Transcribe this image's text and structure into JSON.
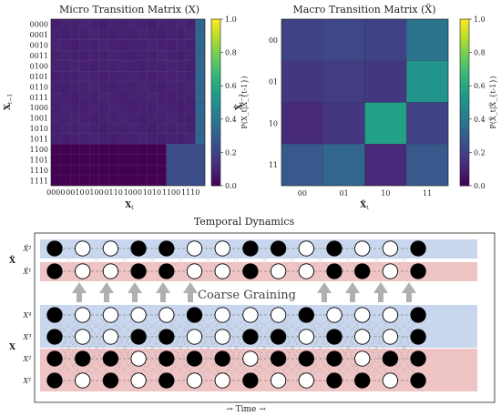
{
  "chart_data": [
    {
      "type": "heatmap",
      "title": "Micro Transition Matrix (X)",
      "xlabel": "X_t",
      "ylabel": "X_{t-1}",
      "row_labels": [
        "0000",
        "0001",
        "0010",
        "0011",
        "0100",
        "0101",
        "0110",
        "0111",
        "1000",
        "1001",
        "1010",
        "1011",
        "1100",
        "1101",
        "1110",
        "1111"
      ],
      "col_tick_labels": [
        "0000",
        "0010",
        "0100",
        "0110",
        "1000",
        "1010",
        "1100",
        "1110"
      ],
      "colorbar": {
        "label": "P(X_t|X_{t-1})",
        "ticks": [
          "0.0",
          "0.2",
          "0.4",
          "0.6",
          "0.8",
          "1.0"
        ],
        "range": [
          0,
          1
        ]
      },
      "rows_0_to_11_value": 0.083,
      "rows_0_to_11_last_column_value": 0.33,
      "rows_12_to_15_block_value": 0.24,
      "grid": true
    },
    {
      "type": "heatmap",
      "title": "Macro Transition Matrix (X̃)",
      "xlabel": "X̃_t",
      "ylabel": "X̃_{t-1}",
      "row_labels": [
        "00",
        "01",
        "10",
        "11"
      ],
      "col_labels": [
        "00",
        "01",
        "10",
        "11"
      ],
      "values": [
        [
          0.2,
          0.22,
          0.2,
          0.38
        ],
        [
          0.16,
          0.18,
          0.16,
          0.52
        ],
        [
          0.12,
          0.16,
          0.57,
          0.2
        ],
        [
          0.28,
          0.33,
          0.11,
          0.28
        ]
      ],
      "colorbar": {
        "label": "P(X̃_t|X̃_{t-1})",
        "ticks": [
          "0.0",
          "0.2",
          "0.4",
          "0.6",
          "0.8",
          "1.0"
        ],
        "range": [
          0,
          1
        ]
      },
      "grid": true
    }
  ],
  "dynamics": {
    "title": "Temporal Dynamics",
    "coarse_label": "Coarse Graining",
    "time_label": "→ Time →",
    "macro_label": "X̃",
    "micro_label": "X",
    "macro_rows": [
      {
        "name": "X̃²",
        "band": "blue",
        "filled": [
          1,
          0,
          0,
          1,
          1,
          0,
          0,
          1,
          1,
          0,
          1,
          0,
          0,
          1
        ]
      },
      {
        "name": "X̃¹",
        "band": "red",
        "filled": [
          1,
          0,
          0,
          1,
          1,
          0,
          0,
          1,
          0,
          0,
          1,
          1,
          0,
          1
        ]
      }
    ],
    "micro_rows": [
      {
        "name": "X⁴",
        "band": "blue",
        "filled": [
          1,
          0,
          0,
          0,
          0,
          1,
          0,
          0,
          0,
          1,
          0,
          0,
          0,
          1
        ]
      },
      {
        "name": "X³",
        "band": "blue",
        "filled": [
          1,
          0,
          0,
          1,
          1,
          0,
          0,
          1,
          1,
          0,
          1,
          0,
          0,
          1
        ]
      },
      {
        "name": "X²",
        "band": "red",
        "filled": [
          1,
          1,
          1,
          0,
          1,
          1,
          1,
          0,
          1,
          1,
          1,
          0,
          1,
          1
        ]
      },
      {
        "name": "X¹",
        "band": "red",
        "filled": [
          1,
          0,
          1,
          0,
          1,
          0,
          0,
          1,
          0,
          0,
          1,
          1,
          0,
          1
        ]
      }
    ],
    "colors": {
      "blue_band": "#c9d7ee",
      "red_band": "#efc4c4",
      "node_filled": "#000000",
      "node_empty": "#ffffff",
      "arrow": "#b0b0b0"
    }
  }
}
